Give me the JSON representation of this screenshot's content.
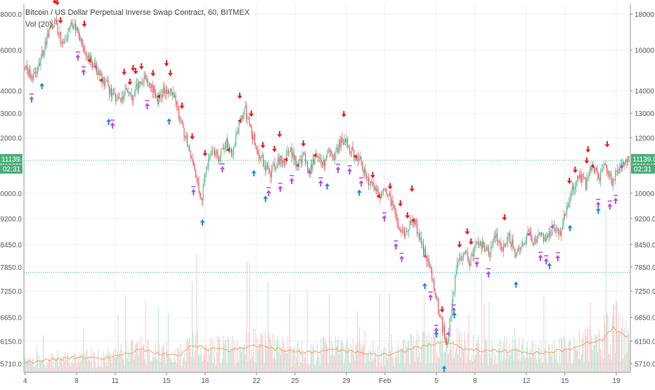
{
  "header": {
    "title": "Bitcoin / US Dollar Perpetual Inverse Swap Contract, 60, BITMEX",
    "indicator": "Vol (20)"
  },
  "chart_data": {
    "type": "candlestick",
    "symbol": "XBTUSD",
    "interval": "60",
    "exchange": "BITMEX",
    "y_ticks": [
      18000.0,
      16000.0,
      14000.0,
      13000.0,
      12000.0,
      11000.0,
      10000.0,
      9200.0,
      8450.0,
      7850.0,
      7250.0,
      6650.0,
      6150.0,
      5710.0
    ],
    "y_tick_labels": [
      "18000.0",
      "16000.0",
      "14000.0",
      "13000.0",
      "12000.0",
      "11000.0",
      "10000.0",
      "9200.0",
      "8450.0",
      "7850.0",
      "7250.0",
      "6650.0",
      "6150.0",
      "5710.0"
    ],
    "ylim": [
      5550,
      18600
    ],
    "scale": "log",
    "x_ticks": [
      "4",
      "8",
      "11",
      "15",
      "18",
      "22",
      "25",
      "29",
      "Feb",
      "5",
      "8",
      "12",
      "15",
      "19"
    ],
    "x_tick_days": [
      4,
      8,
      11,
      15,
      18,
      22,
      25,
      29,
      32,
      36,
      39,
      43,
      46,
      50
    ],
    "xlim_days": [
      3.9,
      51.1
    ],
    "current_price": "11139.0",
    "countdown": "02:31",
    "horizontal_line": 7710,
    "price_path": [
      [
        4.0,
        15100
      ],
      [
        4.6,
        14600
      ],
      [
        5.2,
        15600
      ],
      [
        5.8,
        16900
      ],
      [
        6.3,
        17600
      ],
      [
        6.8,
        16500
      ],
      [
        7.2,
        16800
      ],
      [
        7.8,
        17500
      ],
      [
        8.3,
        16400
      ],
      [
        8.8,
        15700
      ],
      [
        9.3,
        15200
      ],
      [
        9.8,
        14600
      ],
      [
        10.3,
        14300
      ],
      [
        10.8,
        13700
      ],
      [
        11.3,
        13500
      ],
      [
        11.8,
        14100
      ],
      [
        12.3,
        13700
      ],
      [
        12.8,
        14300
      ],
      [
        13.3,
        14700
      ],
      [
        13.8,
        14200
      ],
      [
        14.3,
        13600
      ],
      [
        14.8,
        14000
      ],
      [
        15.3,
        14100
      ],
      [
        15.8,
        13300
      ],
      [
        16.3,
        12300
      ],
      [
        16.8,
        11400
      ],
      [
        17.3,
        10500
      ],
      [
        17.7,
        9800
      ],
      [
        18.1,
        11000
      ],
      [
        18.6,
        11400
      ],
      [
        19.1,
        11300
      ],
      [
        19.6,
        11800
      ],
      [
        20.1,
        11400
      ],
      [
        20.6,
        12500
      ],
      [
        21.1,
        13100
      ],
      [
        21.6,
        12200
      ],
      [
        22.1,
        11400
      ],
      [
        22.6,
        11000
      ],
      [
        23.1,
        10600
      ],
      [
        23.6,
        11200
      ],
      [
        24.1,
        11000
      ],
      [
        24.6,
        11500
      ],
      [
        25.1,
        11000
      ],
      [
        25.6,
        11300
      ],
      [
        26.1,
        10800
      ],
      [
        26.6,
        11400
      ],
      [
        27.1,
        10900
      ],
      [
        27.6,
        11500
      ],
      [
        28.1,
        11300
      ],
      [
        28.6,
        12000
      ],
      [
        29.1,
        11700
      ],
      [
        29.6,
        11300
      ],
      [
        30.1,
        11100
      ],
      [
        30.6,
        10500
      ],
      [
        31.1,
        10100
      ],
      [
        31.6,
        9900
      ],
      [
        32.1,
        10100
      ],
      [
        32.6,
        9500
      ],
      [
        33.1,
        8900
      ],
      [
        33.6,
        8700
      ],
      [
        34.1,
        9300
      ],
      [
        34.6,
        8700
      ],
      [
        35.1,
        8200
      ],
      [
        35.6,
        7600
      ],
      [
        36.0,
        7000
      ],
      [
        36.4,
        6500
      ],
      [
        36.8,
        6000
      ],
      [
        37.2,
        7000
      ],
      [
        37.6,
        7900
      ],
      [
        38.1,
        8200
      ],
      [
        38.6,
        8000
      ],
      [
        39.1,
        8500
      ],
      [
        39.6,
        8400
      ],
      [
        40.1,
        8200
      ],
      [
        40.6,
        8700
      ],
      [
        41.1,
        8300
      ],
      [
        41.6,
        8700
      ],
      [
        42.1,
        8200
      ],
      [
        42.6,
        8400
      ],
      [
        43.1,
        8800
      ],
      [
        43.6,
        8500
      ],
      [
        44.1,
        8700
      ],
      [
        44.6,
        8600
      ],
      [
        45.1,
        9000
      ],
      [
        45.6,
        8800
      ],
      [
        46.1,
        9500
      ],
      [
        46.6,
        10200
      ],
      [
        47.1,
        10600
      ],
      [
        47.6,
        10300
      ],
      [
        48.1,
        11000
      ],
      [
        48.6,
        10500
      ],
      [
        49.1,
        11000
      ],
      [
        49.6,
        10400
      ],
      [
        50.1,
        10700
      ],
      [
        50.6,
        11000
      ],
      [
        51.0,
        11139
      ]
    ],
    "buy_signal_days": [
      5.3,
      10.5,
      15.2,
      17.8,
      21.8,
      22.7,
      27.5,
      30.0,
      35.1,
      36.0,
      36.6,
      37.4,
      42.2,
      44.8,
      46.4,
      48.6
    ],
    "sell_signal_days": [
      6.5,
      8.6,
      12.4,
      15.0,
      17.0,
      20.7,
      23.8,
      28.8,
      33.2,
      34.1,
      38.4,
      41.3,
      47.8,
      49.3
    ],
    "volume_path": [
      [
        4,
        5730
      ],
      [
        6,
        5790
      ],
      [
        8,
        5830
      ],
      [
        10,
        5810
      ],
      [
        12,
        5920
      ],
      [
        13,
        5990
      ],
      [
        14,
        5920
      ],
      [
        16,
        5850
      ],
      [
        17,
        6090
      ],
      [
        18,
        6000
      ],
      [
        20,
        5960
      ],
      [
        22,
        6060
      ],
      [
        24,
        5970
      ],
      [
        26,
        5920
      ],
      [
        28,
        5990
      ],
      [
        30,
        5920
      ],
      [
        32,
        5880
      ],
      [
        33,
        5930
      ],
      [
        34,
        6000
      ],
      [
        35,
        6040
      ],
      [
        36,
        6110
      ],
      [
        37,
        6140
      ],
      [
        38,
        6010
      ],
      [
        40,
        5950
      ],
      [
        42,
        5960
      ],
      [
        44,
        5910
      ],
      [
        46,
        5970
      ],
      [
        47,
        6050
      ],
      [
        48,
        6130
      ],
      [
        49,
        6200
      ],
      [
        49.8,
        6430
      ],
      [
        50.5,
        6260
      ],
      [
        51,
        6230
      ]
    ]
  },
  "colors": {
    "up": "#53b987",
    "down": "#eb4d5c",
    "buy_marker": "#1e88e5",
    "sell_marker": "#e91e1e",
    "signal_purple": "#b44fe0",
    "volume_ma": "#f0a35b",
    "price_badge": "#4cae7a",
    "h_line": "#26a69a"
  }
}
